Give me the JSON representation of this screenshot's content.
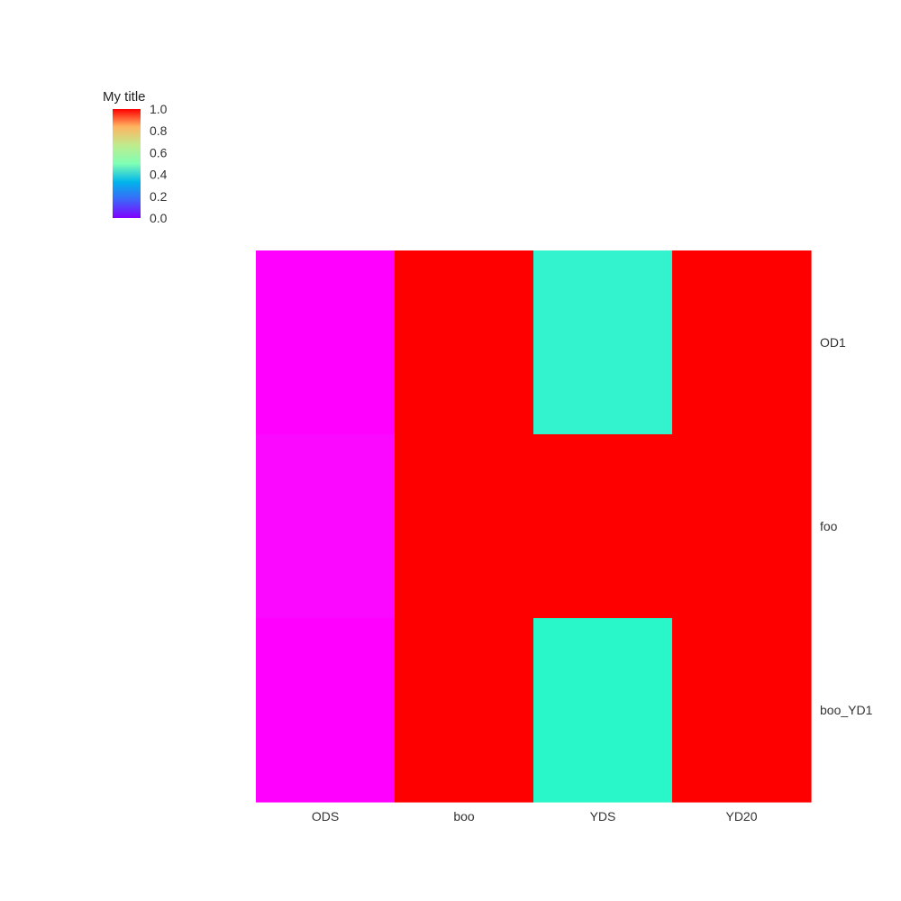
{
  "chart_data": {
    "type": "heatmap",
    "x_categories": [
      "ODS",
      "boo",
      "YDS",
      "YD20"
    ],
    "y_categories": [
      "OD1",
      "foo",
      "boo_YD1"
    ],
    "values": [
      [
        0.0,
        1.0,
        0.4,
        1.0
      ],
      [
        0.01,
        1.0,
        1.0,
        1.0
      ],
      [
        0.0,
        1.0,
        0.42,
        1.0
      ]
    ],
    "colorbar": {
      "title": "My title",
      "range": [
        0,
        1
      ],
      "ticks": [
        "0.0",
        "0.2",
        "0.4",
        "0.6",
        "0.8",
        "1.0"
      ],
      "colormap": "rainbow",
      "placement": "top-left"
    },
    "grid": false
  }
}
